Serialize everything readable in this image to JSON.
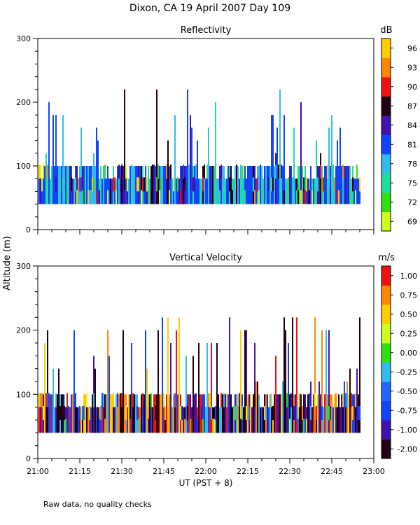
{
  "chart_data": [
    {
      "type": "heatmap",
      "name": "reflectivity",
      "title": "Reflectivity",
      "ylabel": "Altitude (m)",
      "ylim": [
        0,
        300
      ],
      "yticks": [
        0,
        100,
        200,
        300
      ],
      "colorbar": {
        "unit": "dB",
        "ticks": [
          "69",
          "72",
          "75",
          "78",
          "81",
          "84",
          "87",
          "90",
          "93",
          "96"
        ],
        "colors": [
          "#ccff22",
          "#33dd11",
          "#22dd99",
          "#33bbee",
          "#1144ff",
          "#4411aa",
          "#220011",
          "#ee1111",
          "#ff8800",
          "#ffcc00"
        ]
      },
      "data_range_altitude_m": [
        40,
        220
      ],
      "dominant_top_altitude_m": 100
    },
    {
      "type": "heatmap",
      "name": "vertical-velocity",
      "title": "Vertical Velocity",
      "ylabel": "Altitude (m)",
      "ylim": [
        0,
        300
      ],
      "yticks": [
        0,
        100,
        200,
        300
      ],
      "colorbar": {
        "unit": "m/s",
        "ticks": [
          "-2.00",
          "-1.00",
          "-0.75",
          "-0.50",
          "-0.25",
          "0.00",
          "0.25",
          "0.50",
          "0.75",
          "1.00"
        ],
        "colors": [
          "#220011",
          "#4411aa",
          "#1144ff",
          "#2266ff",
          "#33bbee",
          "#33dd11",
          "#ccff22",
          "#ffcc00",
          "#ff8800",
          "#ee1111"
        ]
      },
      "data_range_altitude_m": [
        40,
        220
      ],
      "dominant_top_altitude_m": 100
    }
  ],
  "figure": {
    "title": "Dixon, CA 19 April 2007  Day 109",
    "ylabel": "Altitude (m)",
    "xlabel": "UT  (PST + 8)",
    "xticks": [
      "21:00",
      "21:15",
      "21:30",
      "21:45",
      "22:00",
      "22:15",
      "22:30",
      "22:45",
      "23:00"
    ],
    "xrange": [
      "21:00",
      "23:00"
    ],
    "footnote": "Raw data, no quality checks"
  }
}
